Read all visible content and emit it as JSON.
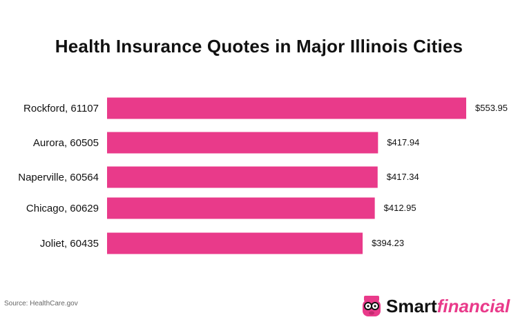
{
  "chart_data": {
    "type": "bar",
    "orientation": "horizontal",
    "title": "Health Insurance Quotes in Major Illinois Cities",
    "categories": [
      "Rockford, 61107",
      "Aurora, 60505",
      "Naperville, 60564",
      "Chicago, 60629",
      "Joliet, 60435"
    ],
    "values": [
      553.95,
      417.94,
      417.34,
      412.95,
      394.23
    ],
    "value_labels": [
      "$553.95",
      "$417.94",
      "$417.34",
      "$412.95",
      "$394.23"
    ],
    "xlim": [
      0,
      553.95
    ],
    "grid": false,
    "legend": "none",
    "bar_color": "#e93a8a"
  },
  "footer": {
    "source": "Source: HealthCare.gov",
    "logo_text_a": "Smart",
    "logo_text_b": "financial",
    "logo_icon": "piggy-glasses-icon"
  }
}
